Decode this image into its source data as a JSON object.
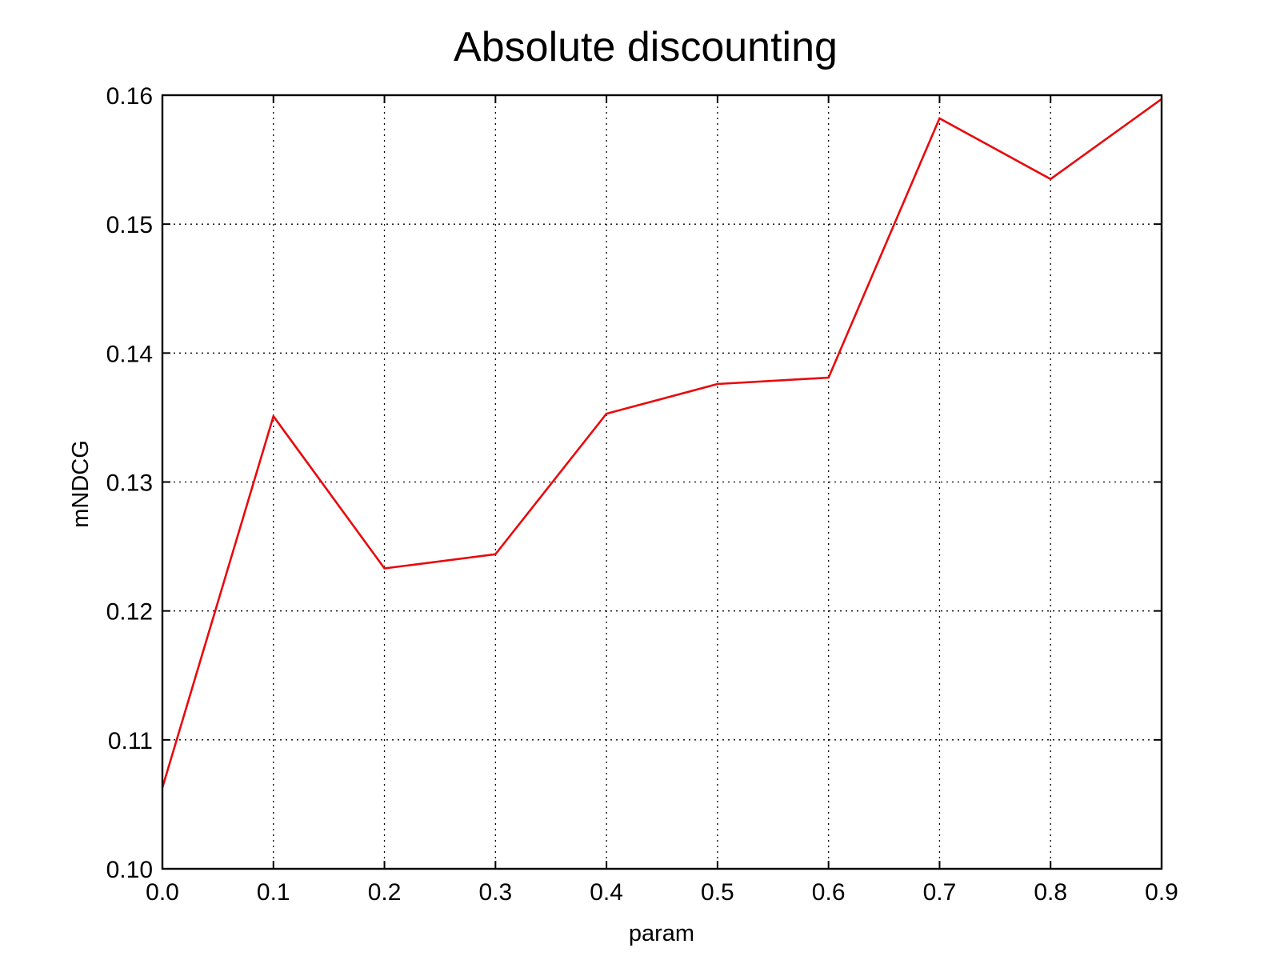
{
  "chart_data": {
    "type": "line",
    "title": "Absolute discounting",
    "xlabel": "param",
    "ylabel": "mNDCG",
    "x": [
      0.0,
      0.1,
      0.2,
      0.3,
      0.4,
      0.5,
      0.6,
      0.7,
      0.8,
      0.9
    ],
    "series": [
      {
        "values": [
          0.1063,
          0.1351,
          0.1233,
          0.1244,
          0.1353,
          0.1376,
          0.1381,
          0.1582,
          0.1535,
          0.1597
        ],
        "color": "#e8090c"
      }
    ],
    "xlim": [
      0.0,
      0.9
    ],
    "ylim": [
      0.1,
      0.16
    ],
    "xticks": [
      0.0,
      0.1,
      0.2,
      0.3,
      0.4,
      0.5,
      0.6,
      0.7,
      0.8,
      0.9
    ],
    "yticks": [
      0.1,
      0.11,
      0.12,
      0.13,
      0.14,
      0.15,
      0.16
    ],
    "xtick_labels": [
      "0.0",
      "0.1",
      "0.2",
      "0.3",
      "0.4",
      "0.5",
      "0.6",
      "0.7",
      "0.8",
      "0.9"
    ],
    "ytick_labels": [
      "0.10",
      "0.11",
      "0.12",
      "0.13",
      "0.14",
      "0.15",
      "0.16"
    ],
    "grid": true,
    "legend": "none"
  }
}
